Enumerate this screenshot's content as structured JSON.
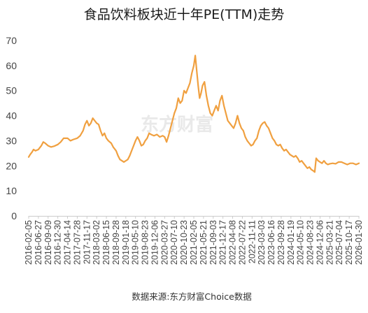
{
  "chart_data": {
    "type": "line",
    "title": "食品饮料板块近十年PE(TTM)走势",
    "source_note": "数据来源:东方财富Choice数据",
    "watermark": "东方财富",
    "xlabel": "",
    "ylabel": "",
    "ylim": [
      0,
      70
    ],
    "yticks": [
      0,
      10,
      20,
      30,
      40,
      50,
      60,
      70
    ],
    "grid": false,
    "legend": "none",
    "colors": {
      "line": "#f0a040",
      "axis": "#cccccc",
      "text": "#444444"
    },
    "x_tick_labels": [
      "2016-02-05",
      "2016-06-27",
      "2016-09-09",
      "2016-12-30",
      "2017-04-14",
      "2017-07-28",
      "2017-11-17",
      "2018-03-02",
      "2018-06-15",
      "2018-09-28",
      "2019-01-18",
      "2019-05-10",
      "2019-08-23",
      "2019-12-06",
      "2020-03-27",
      "2020-07-10",
      "2020-10-23",
      "2021-02-05",
      "2021-05-21",
      "2021-09-03",
      "2021-12-17",
      "2022-04-08",
      "2022-07-22",
      "2022-11-11",
      "2023-03-03",
      "2023-06-16",
      "2023-09-28",
      "2024-01-19",
      "2024-05-10",
      "2024-08-23",
      "2024-12-06",
      "2025-03-21",
      "2025-07-04",
      "2025-10-17",
      "2026-01-30"
    ],
    "series": [
      {
        "values": [
          [
            0,
            23.5
          ],
          [
            0.15,
            24.5
          ],
          [
            0.35,
            25.5
          ],
          [
            0.5,
            26.5
          ],
          [
            0.7,
            26
          ],
          [
            1,
            26.5
          ],
          [
            1.3,
            28
          ],
          [
            1.5,
            29.5
          ],
          [
            1.7,
            29
          ],
          [
            2,
            28
          ],
          [
            2.3,
            27.5
          ],
          [
            2.6,
            27.8
          ],
          [
            3,
            28.5
          ],
          [
            3.3,
            29.5
          ],
          [
            3.6,
            31
          ],
          [
            4,
            31
          ],
          [
            4.3,
            30
          ],
          [
            4.6,
            30.5
          ],
          [
            5,
            31
          ],
          [
            5.3,
            32
          ],
          [
            5.6,
            34
          ],
          [
            5.8,
            36.5
          ],
          [
            6,
            38
          ],
          [
            6.2,
            36
          ],
          [
            6.4,
            37
          ],
          [
            6.6,
            39
          ],
          [
            6.8,
            38
          ],
          [
            7,
            37
          ],
          [
            7.2,
            36.5
          ],
          [
            7.4,
            34
          ],
          [
            7.6,
            32
          ],
          [
            7.8,
            33
          ],
          [
            8,
            31
          ],
          [
            8.2,
            30
          ],
          [
            8.5,
            29
          ],
          [
            8.7,
            27.5
          ],
          [
            9,
            26
          ],
          [
            9.2,
            24
          ],
          [
            9.4,
            22.5
          ],
          [
            9.6,
            22
          ],
          [
            9.8,
            21.5
          ],
          [
            10,
            22
          ],
          [
            10.2,
            22.5
          ],
          [
            10.4,
            24
          ],
          [
            10.6,
            26
          ],
          [
            10.8,
            28
          ],
          [
            11,
            30
          ],
          [
            11.2,
            31.5
          ],
          [
            11.4,
            30
          ],
          [
            11.6,
            28
          ],
          [
            11.8,
            28.5
          ],
          [
            12,
            30
          ],
          [
            12.2,
            31
          ],
          [
            12.4,
            33
          ],
          [
            12.6,
            32.5
          ],
          [
            12.9,
            32
          ],
          [
            13.2,
            32.5
          ],
          [
            13.5,
            31.5
          ],
          [
            13.8,
            32
          ],
          [
            14,
            31.5
          ],
          [
            14.2,
            29.5
          ],
          [
            14.4,
            32
          ],
          [
            14.6,
            35
          ],
          [
            14.8,
            38
          ],
          [
            15,
            41
          ],
          [
            15.2,
            43
          ],
          [
            15.4,
            47
          ],
          [
            15.6,
            45
          ],
          [
            15.8,
            46
          ],
          [
            16,
            50
          ],
          [
            16.2,
            49
          ],
          [
            16.4,
            51
          ],
          [
            16.6,
            53
          ],
          [
            16.8,
            57
          ],
          [
            17,
            60
          ],
          [
            17.15,
            64
          ],
          [
            17.3,
            58
          ],
          [
            17.45,
            52
          ],
          [
            17.6,
            47
          ],
          [
            17.75,
            49
          ],
          [
            17.9,
            52
          ],
          [
            18.1,
            53.5
          ],
          [
            18.3,
            48
          ],
          [
            18.5,
            44
          ],
          [
            18.7,
            41
          ],
          [
            18.9,
            40
          ],
          [
            19.1,
            42
          ],
          [
            19.3,
            44
          ],
          [
            19.5,
            42
          ],
          [
            19.7,
            46
          ],
          [
            19.9,
            48
          ],
          [
            20.1,
            44
          ],
          [
            20.3,
            41
          ],
          [
            20.5,
            38
          ],
          [
            20.7,
            37
          ],
          [
            20.9,
            36
          ],
          [
            21.1,
            35
          ],
          [
            21.3,
            37
          ],
          [
            21.5,
            40
          ],
          [
            21.7,
            37
          ],
          [
            21.9,
            35
          ],
          [
            22.1,
            34
          ],
          [
            22.3,
            31.5
          ],
          [
            22.5,
            30
          ],
          [
            22.7,
            29
          ],
          [
            22.9,
            28
          ],
          [
            23.1,
            28.5
          ],
          [
            23.3,
            30
          ],
          [
            23.5,
            31
          ],
          [
            23.7,
            34
          ],
          [
            23.9,
            36
          ],
          [
            24.1,
            37
          ],
          [
            24.3,
            37.5
          ],
          [
            24.5,
            36
          ],
          [
            24.7,
            35
          ],
          [
            24.9,
            33
          ],
          [
            25.1,
            31
          ],
          [
            25.3,
            30
          ],
          [
            25.5,
            28.5
          ],
          [
            25.7,
            28
          ],
          [
            25.9,
            28.5
          ],
          [
            26.1,
            27
          ],
          [
            26.3,
            26
          ],
          [
            26.5,
            26.5
          ],
          [
            26.7,
            25.5
          ],
          [
            26.9,
            24.5
          ],
          [
            27.1,
            24
          ],
          [
            27.3,
            23.5
          ],
          [
            27.5,
            24
          ],
          [
            27.7,
            23
          ],
          [
            27.9,
            21.5
          ],
          [
            28.1,
            22
          ],
          [
            28.3,
            21
          ],
          [
            28.5,
            20
          ],
          [
            28.7,
            19
          ],
          [
            28.9,
            19.5
          ],
          [
            29.1,
            18.5
          ],
          [
            29.3,
            18
          ],
          [
            29.45,
            17.5
          ],
          [
            29.6,
            23
          ],
          [
            29.8,
            22
          ],
          [
            30,
            21.5
          ],
          [
            30.2,
            21
          ],
          [
            30.4,
            22
          ],
          [
            30.6,
            21
          ],
          [
            30.8,
            20.5
          ],
          [
            31,
            20.8
          ],
          [
            31.3,
            21
          ],
          [
            31.6,
            20.8
          ],
          [
            31.9,
            21.5
          ],
          [
            32.2,
            21.5
          ],
          [
            32.5,
            21
          ],
          [
            32.8,
            20.5
          ],
          [
            33.1,
            21
          ],
          [
            33.4,
            21
          ],
          [
            33.7,
            20.5
          ],
          [
            34,
            21
          ]
        ]
      }
    ]
  }
}
